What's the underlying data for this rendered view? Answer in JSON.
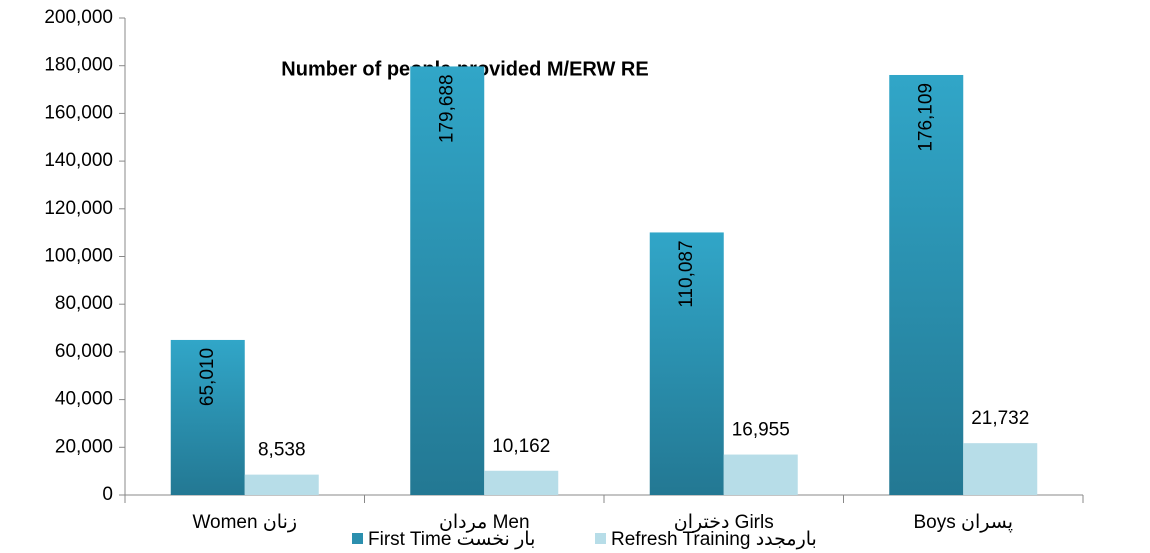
{
  "chart_data": {
    "type": "bar",
    "title": "Number of people provided M/ERW RE",
    "categories": [
      "Women زنان",
      "مردان Men",
      "دختران Girls",
      "Boys پسران"
    ],
    "series": [
      {
        "name": "First Time بار نخست",
        "color": "#2b9bbb",
        "values": [
          65010,
          179688,
          110087,
          176109
        ],
        "value_labels": [
          "65,010",
          "179,688",
          "110,087",
          "176,109"
        ]
      },
      {
        "name": "Refresh Training بارمجدد",
        "color": "#b7dde8",
        "values": [
          8538,
          10162,
          16955,
          21732
        ],
        "value_labels": [
          "8,538",
          "10,162",
          "16,955",
          "21,732"
        ]
      }
    ],
    "ylim": [
      0,
      200000
    ],
    "yticks": [
      0,
      {
        "value": 20000,
        "label": "20,000"
      },
      {
        "value": 40000,
        "label": "40,000"
      },
      {
        "value": 60000,
        "label": "60,000"
      },
      {
        "value": 80000,
        "label": "80,000"
      },
      {
        "value": 100000,
        "label": "100,000"
      },
      {
        "value": 120000,
        "label": "120,000"
      },
      {
        "value": 140000,
        "label": "140,000"
      },
      {
        "value": 160000,
        "label": "160,000"
      },
      {
        "value": 180000,
        "label": "180,000"
      },
      {
        "value": 200000,
        "label": "200,000"
      }
    ],
    "legend": "bottom"
  }
}
